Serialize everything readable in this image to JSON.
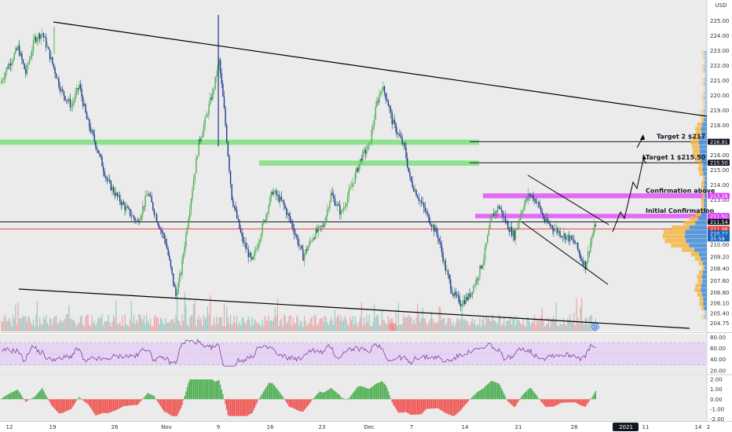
{
  "header": {
    "currency": "USD"
  },
  "colors": {
    "up": "#26a69a",
    "down": "#ef5350",
    "candle_up": "#4caf50",
    "candle_down": "#1e3a8a",
    "green_zone": "#7ee07e",
    "magenta_zone": "#e040fb",
    "rsi_bg": "#e6d5f2",
    "rsi_line": "#7b3fa8",
    "vp_blue": "#4a90d9",
    "vp_orange": "#f5b642",
    "price_tag_red": "#e53935",
    "price_tag_black": "#131722"
  },
  "chart_data": [
    {
      "type": "candlestick",
      "panel": "price",
      "price_axis": {
        "range": [
          204.3,
          226.3
        ],
        "ticks": [
          "225.00",
          "224.00",
          "223.00",
          "222.00",
          "221.00",
          "220.00",
          "219.00",
          "218.00",
          "216.00",
          "215.00",
          "214.00",
          "213.00",
          "212.00",
          "210.00",
          "209.20",
          "208.40",
          "207.60",
          "206.80",
          "206.10",
          "205.40",
          "204.75"
        ]
      },
      "price_tags": [
        {
          "label": "216.91",
          "price": 216.91,
          "color": "#131722"
        },
        {
          "label": "215.50",
          "price": 215.5,
          "color": "#131722"
        },
        {
          "label": "213.28",
          "price": 213.28,
          "color": "#e040fb"
        },
        {
          "label": "211.92",
          "price": 211.92,
          "color": "#e040fb"
        },
        {
          "label": "211.54",
          "price": 211.54,
          "color": "#131722"
        },
        {
          "label": "211.06",
          "price": 211.06,
          "color": "#e53935"
        },
        {
          "label": "210.77",
          "price": 210.77,
          "color": "#1565c0"
        },
        {
          "label": "35:59",
          "price": 210.42,
          "color": "#1565c0"
        }
      ],
      "annotations": [
        {
          "text": "Target 2 $217",
          "price": 216.91
        },
        {
          "text": "Target 1 $215.50",
          "price": 215.5
        },
        {
          "text": "Confirmation above",
          "price": 213.28
        },
        {
          "text": "Initial Confirmation",
          "price": 211.92
        }
      ],
      "event_markers": [
        "E",
        "D"
      ]
    },
    {
      "type": "line",
      "panel": "rsi",
      "axis": {
        "range": [
          14,
          86
        ],
        "ticks": [
          "80.00",
          "60.00",
          "40.00",
          "20.00"
        ]
      }
    },
    {
      "type": "bar",
      "panel": "macd_histogram",
      "axis": {
        "range": [
          -2.2,
          2.4
        ],
        "ticks": [
          "2.00",
          "1.00",
          "0.00",
          "-1.00",
          "-2.00"
        ]
      }
    }
  ],
  "time_axis": {
    "ticks": [
      "12",
      "19",
      "26",
      "Nov",
      "9",
      "16",
      "23",
      "Dec",
      "7",
      "14",
      "21",
      "28",
      "2021",
      "11",
      "14",
      "2"
    ]
  }
}
